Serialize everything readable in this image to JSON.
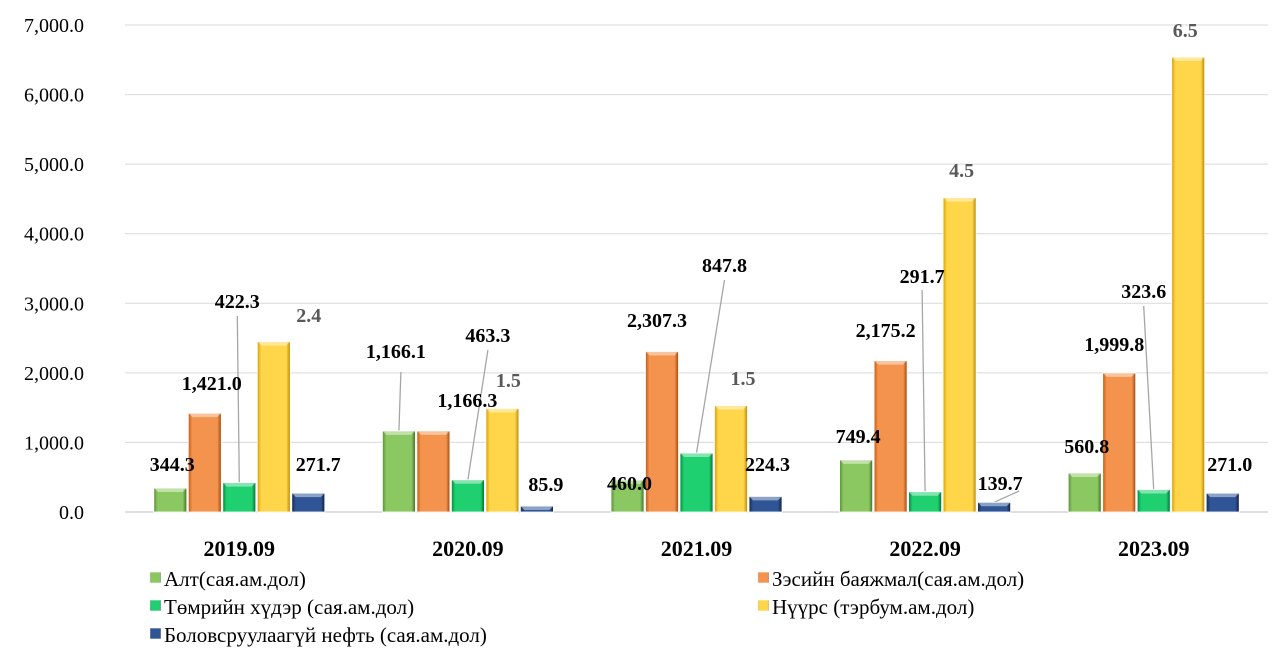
{
  "chart_data": {
    "type": "bar",
    "title": "",
    "xlabel": "",
    "ylabel": "",
    "ylim": [
      0,
      7000
    ],
    "ytick_labels": [
      "0.0",
      "1,000.0",
      "2,000.0",
      "3,000.0",
      "4,000.0",
      "5,000.0",
      "6,000.0",
      "7,000.0"
    ],
    "grid": true,
    "legend_position": "bottom",
    "categories": [
      "2019.09",
      "2020.09",
      "2021.09",
      "2022.09",
      "2023.09"
    ],
    "series": [
      {
        "name": "Алт(сая.ам.дол)",
        "color": "#70AD47",
        "values": [
          344.3,
          1166.1,
          460.0,
          749.4,
          560.8
        ],
        "labels": [
          "344.3",
          "1,166.1",
          "460.0",
          "749.4",
          "560.8"
        ]
      },
      {
        "name": "Зэсийн баяжмал(сая.ам.дол)",
        "color": "#ED7D31",
        "values": [
          1421.0,
          1166.3,
          2307.3,
          2175.2,
          1999.8
        ],
        "labels": [
          "1,421.0",
          "1,166.3",
          "2,307.3",
          "2,175.2",
          "1,999.8"
        ]
      },
      {
        "name": "Төмрийн хүдэр (сая.ам.дол)",
        "color": "#00B050",
        "values": [
          422.3,
          463.3,
          847.8,
          291.7,
          323.6
        ],
        "labels": [
          "422.3",
          "463.3",
          "847.8",
          "291.7",
          "323.6"
        ]
      },
      {
        "name": "Нүүрс (тэрбум.ам.дол)",
        "color": "#FFC000",
        "values": [
          2450,
          1490,
          1530,
          4520,
          6540
        ],
        "labels": [
          "2.4",
          "1.5",
          "1.5",
          "4.5",
          "6.5"
        ]
      },
      {
        "name": "Боловсруулаагүй нефть (сая.ам.дол)",
        "color": "#1F3864",
        "values": [
          271.7,
          85.9,
          224.3,
          139.7,
          271.0
        ],
        "labels": [
          "271.7",
          "85.9",
          "224.3",
          "139.7",
          "271.0"
        ]
      }
    ]
  }
}
